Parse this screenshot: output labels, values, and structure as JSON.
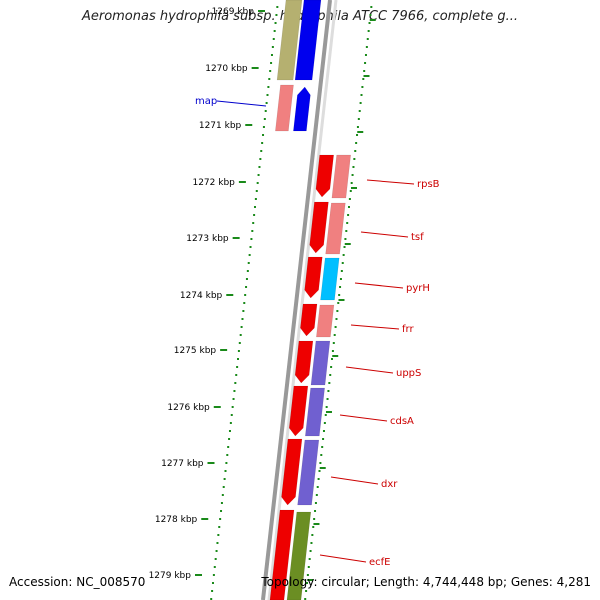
{
  "title": "Aeromonas hydrophila subsp. hydrophila ATCC 7966, complete g...",
  "footer": {
    "accession": "Accession: NC_008570",
    "summary": "Topology: circular; Length: 4,744,448 bp; Genes: 4,281"
  },
  "ticks": [
    {
      "label": "1269 kbp",
      "faded": true
    },
    {
      "label": "1270 kbp"
    },
    {
      "label": "1271 kbp"
    },
    {
      "label": "1272 kbp"
    },
    {
      "label": "1273 kbp"
    },
    {
      "label": "1274 kbp"
    },
    {
      "label": "1275 kbp"
    },
    {
      "label": "1276 kbp"
    },
    {
      "label": "1277 kbp"
    },
    {
      "label": "1278 kbp"
    },
    {
      "label": "1279 kbp"
    }
  ],
  "gene_labels": [
    {
      "label": "map",
      "color": "#0000cc"
    },
    {
      "label": "rpsB",
      "color": "#cc0000"
    },
    {
      "label": "tsf",
      "color": "#cc0000"
    },
    {
      "label": "pyrH",
      "color": "#cc0000"
    },
    {
      "label": "frr",
      "color": "#cc0000"
    },
    {
      "label": "uppS",
      "color": "#cc0000"
    },
    {
      "label": "cdsA",
      "color": "#cc0000"
    },
    {
      "label": "dxr",
      "color": "#cc0000"
    },
    {
      "label": "ecfE",
      "color": "#cc0000"
    }
  ],
  "colors": {
    "backbone": "#8a8a8a",
    "dotted_track": "#1a8a1a",
    "forward_gene": "#0000ee",
    "reverse_gene": "#ee0000",
    "cog_olive": "#b5b070",
    "cog_blue": "#c8c8ff",
    "cog_salmon": "#f08080",
    "cog_cyan": "#00bfff",
    "cog_purple": "#7060d0",
    "cog_green": "#6b8e23"
  }
}
